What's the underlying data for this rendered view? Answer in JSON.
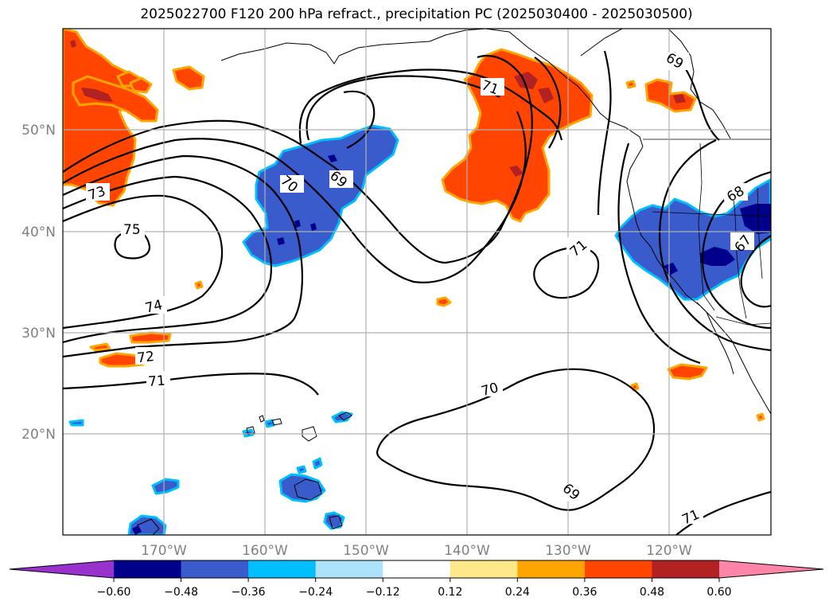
{
  "title": "2025022700 F120 200 hPa refract., precipitation PC (2025030400 - 2025030500)",
  "lat_labels": [
    "50°N",
    "40°N",
    "30°N",
    "20°N"
  ],
  "lon_labels": [
    "170°W",
    "160°W",
    "150°W",
    "140°W",
    "130°W",
    "120°W"
  ],
  "contour_labels": [
    "75",
    "74",
    "73",
    "72",
    "71",
    "70",
    "69",
    "71",
    "71",
    "69",
    "68",
    "67",
    "70",
    "69",
    "71"
  ],
  "colorbar": {
    "ticks": [
      "−0.60",
      "−0.48",
      "−0.36",
      "−0.24",
      "−0.12",
      "0.12",
      "0.24",
      "0.36",
      "0.48",
      "0.60"
    ],
    "colors": [
      "#9932cc",
      "#00008b",
      "#3a5bcc",
      "#00bfff",
      "#ade3fa",
      "#ffffff",
      "#ffe88a",
      "#ffa500",
      "#ff4500",
      "#b22222",
      "#ff85a8"
    ]
  },
  "colors": {
    "neg_fill": "#3a5bcc",
    "neg_dark": "#00008b",
    "neg_edge": "#00bfff",
    "pos_fill": "#ff4500",
    "pos_dark": "#b22222",
    "pos_edge": "#ffa500",
    "pos_outer": "#ffe88a"
  }
}
